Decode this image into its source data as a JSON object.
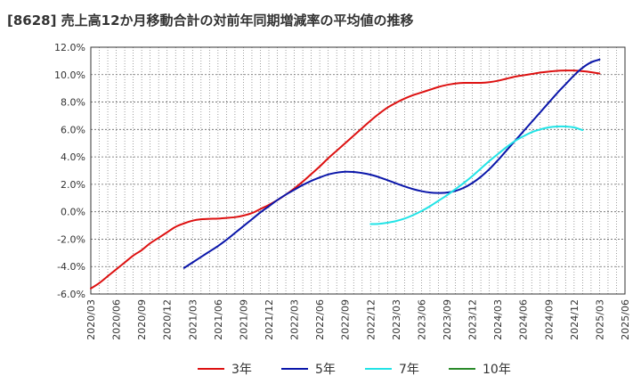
{
  "chart_data": {
    "type": "line",
    "title": "[8628]  売上高12か月移動合計の対前年同期増減率の平均値の推移",
    "xlabel": "",
    "ylabel": "",
    "ylim": [
      -6.0,
      12.0
    ],
    "yticks": [
      -6.0,
      -4.0,
      -2.0,
      0.0,
      2.0,
      4.0,
      6.0,
      8.0,
      10.0,
      12.0
    ],
    "ytick_labels": [
      "-6.0%",
      "-4.0%",
      "-2.0%",
      "0.0%",
      "2.0%",
      "4.0%",
      "6.0%",
      "8.0%",
      "10.0%",
      "12.0%"
    ],
    "x_start": "2020/03",
    "x_end": "2025/06",
    "xtick_labels": [
      "2020/03",
      "2020/06",
      "2020/09",
      "2020/12",
      "2021/03",
      "2021/06",
      "2021/09",
      "2021/12",
      "2022/03",
      "2022/06",
      "2022/09",
      "2022/12",
      "2023/03",
      "2023/06",
      "2023/09",
      "2023/12",
      "2024/03",
      "2024/06",
      "2024/09",
      "2024/12",
      "2025/03",
      "2025/06"
    ],
    "grid": true,
    "legend_position": "bottom",
    "series": [
      {
        "name": "3年",
        "color": "#dd1111",
        "start": "2020/03",
        "values": [
          -5.6,
          -5.2,
          -4.7,
          -4.2,
          -3.7,
          -3.2,
          -2.8,
          -2.3,
          -1.9,
          -1.5,
          -1.1,
          -0.85,
          -0.65,
          -0.55,
          -0.52,
          -0.5,
          -0.45,
          -0.4,
          -0.28,
          -0.1,
          0.2,
          0.5,
          0.85,
          1.25,
          1.7,
          2.2,
          2.75,
          3.3,
          3.9,
          4.45,
          5.0,
          5.55,
          6.1,
          6.65,
          7.15,
          7.6,
          7.95,
          8.25,
          8.5,
          8.7,
          8.9,
          9.1,
          9.25,
          9.35,
          9.4,
          9.4,
          9.4,
          9.45,
          9.55,
          9.7,
          9.85,
          9.95,
          10.05,
          10.15,
          10.22,
          10.28,
          10.3,
          10.3,
          10.25,
          10.18,
          10.08
        ]
      },
      {
        "name": "5年",
        "color": "#0a16aa",
        "start": "2021/02",
        "values": [
          -4.1,
          -3.7,
          -3.3,
          -2.9,
          -2.5,
          -2.05,
          -1.55,
          -1.05,
          -0.55,
          -0.05,
          0.4,
          0.85,
          1.25,
          1.6,
          1.95,
          2.25,
          2.5,
          2.72,
          2.85,
          2.92,
          2.9,
          2.82,
          2.7,
          2.52,
          2.3,
          2.07,
          1.85,
          1.65,
          1.5,
          1.4,
          1.37,
          1.4,
          1.52,
          1.75,
          2.1,
          2.55,
          3.1,
          3.75,
          4.45,
          5.15,
          5.85,
          6.55,
          7.25,
          7.95,
          8.65,
          9.3,
          9.95,
          10.5,
          10.9,
          11.1
        ]
      },
      {
        "name": "7年",
        "color": "#22e3e6",
        "start": "2022/12",
        "values": [
          -0.9,
          -0.88,
          -0.8,
          -0.68,
          -0.5,
          -0.25,
          0.05,
          0.4,
          0.8,
          1.2,
          1.65,
          2.1,
          2.6,
          3.15,
          3.7,
          4.2,
          4.7,
          5.15,
          5.5,
          5.8,
          6.0,
          6.15,
          6.22,
          6.22,
          6.15,
          5.95
        ]
      },
      {
        "name": "10年",
        "color": "#2a8a2a",
        "start": "",
        "values": []
      }
    ]
  }
}
